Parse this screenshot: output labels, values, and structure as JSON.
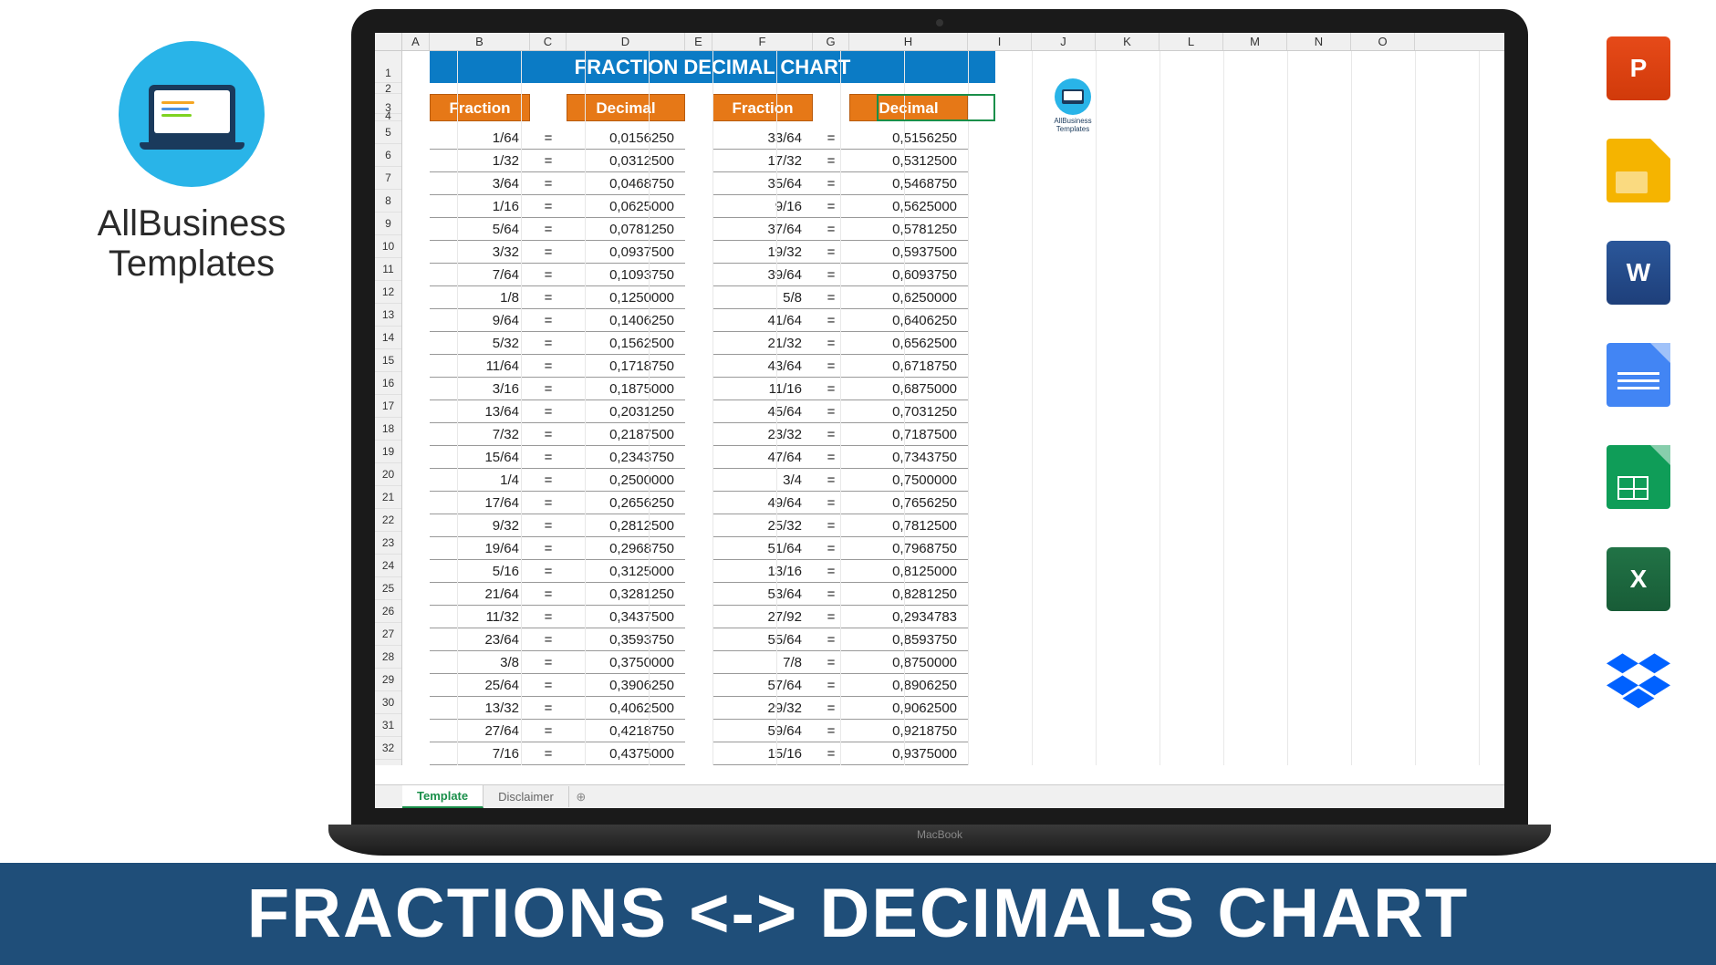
{
  "brand": {
    "line1": "AllBusiness",
    "line2": "Templates"
  },
  "banner": "FRACTIONS <-> DECIMALS CHART",
  "laptop_label": "MacBook",
  "spreadsheet": {
    "title": "FRACTION DECIMAL CHART",
    "title_bg": "#0b7bc5",
    "header_bg": "#e67817",
    "columns": [
      "A",
      "B",
      "C",
      "D",
      "E",
      "F",
      "G",
      "H",
      "I",
      "J",
      "K",
      "L",
      "M",
      "N",
      "O"
    ],
    "row_numbers": [
      1,
      2,
      3,
      4,
      5,
      6,
      7,
      8,
      9,
      10,
      11,
      12,
      13,
      14,
      15,
      16,
      17,
      18,
      19,
      20,
      21,
      22,
      23,
      24,
      25,
      26,
      27,
      28,
      29,
      30,
      31,
      32
    ],
    "headers": {
      "fraction": "Fraction",
      "decimal": "Decimal"
    },
    "tabs": {
      "active": "Template",
      "other": "Disclaimer"
    },
    "mini_logo": "AllBusiness Templates",
    "rows": [
      {
        "f1": "1/64",
        "d1": "0,0156250",
        "f2": "33/64",
        "d2": "0,5156250"
      },
      {
        "f1": "1/32",
        "d1": "0,0312500",
        "f2": "17/32",
        "d2": "0,5312500"
      },
      {
        "f1": "3/64",
        "d1": "0,0468750",
        "f2": "35/64",
        "d2": "0,5468750"
      },
      {
        "f1": "1/16",
        "d1": "0,0625000",
        "f2": "9/16",
        "d2": "0,5625000"
      },
      {
        "f1": "5/64",
        "d1": "0,0781250",
        "f2": "37/64",
        "d2": "0,5781250"
      },
      {
        "f1": "3/32",
        "d1": "0,0937500",
        "f2": "19/32",
        "d2": "0,5937500"
      },
      {
        "f1": "7/64",
        "d1": "0,1093750",
        "f2": "39/64",
        "d2": "0,6093750"
      },
      {
        "f1": "1/8",
        "d1": "0,1250000",
        "f2": "5/8",
        "d2": "0,6250000"
      },
      {
        "f1": "9/64",
        "d1": "0,1406250",
        "f2": "41/64",
        "d2": "0,6406250"
      },
      {
        "f1": "5/32",
        "d1": "0,1562500",
        "f2": "21/32",
        "d2": "0,6562500"
      },
      {
        "f1": "11/64",
        "d1": "0,1718750",
        "f2": "43/64",
        "d2": "0,6718750"
      },
      {
        "f1": "3/16",
        "d1": "0,1875000",
        "f2": "11/16",
        "d2": "0,6875000"
      },
      {
        "f1": "13/64",
        "d1": "0,2031250",
        "f2": "45/64",
        "d2": "0,7031250"
      },
      {
        "f1": "7/32",
        "d1": "0,2187500",
        "f2": "23/32",
        "d2": "0,7187500"
      },
      {
        "f1": "15/64",
        "d1": "0,2343750",
        "f2": "47/64",
        "d2": "0,7343750"
      },
      {
        "f1": "1/4",
        "d1": "0,2500000",
        "f2": "3/4",
        "d2": "0,7500000"
      },
      {
        "f1": "17/64",
        "d1": "0,2656250",
        "f2": "49/64",
        "d2": "0,7656250"
      },
      {
        "f1": "9/32",
        "d1": "0,2812500",
        "f2": "25/32",
        "d2": "0,7812500"
      },
      {
        "f1": "19/64",
        "d1": "0,2968750",
        "f2": "51/64",
        "d2": "0,7968750"
      },
      {
        "f1": "5/16",
        "d1": "0,3125000",
        "f2": "13/16",
        "d2": "0,8125000"
      },
      {
        "f1": "21/64",
        "d1": "0,3281250",
        "f2": "53/64",
        "d2": "0,8281250"
      },
      {
        "f1": "11/32",
        "d1": "0,3437500",
        "f2": "27/92",
        "d2": "0,2934783"
      },
      {
        "f1": "23/64",
        "d1": "0,3593750",
        "f2": "55/64",
        "d2": "0,8593750"
      },
      {
        "f1": "3/8",
        "d1": "0,3750000",
        "f2": "7/8",
        "d2": "0,8750000"
      },
      {
        "f1": "25/64",
        "d1": "0,3906250",
        "f2": "57/64",
        "d2": "0,8906250"
      },
      {
        "f1": "13/32",
        "d1": "0,4062500",
        "f2": "29/32",
        "d2": "0,9062500"
      },
      {
        "f1": "27/64",
        "d1": "0,4218750",
        "f2": "59/64",
        "d2": "0,9218750"
      },
      {
        "f1": "7/16",
        "d1": "0,4375000",
        "f2": "15/16",
        "d2": "0,9375000"
      }
    ]
  },
  "icons": {
    "powerpoint": "P",
    "word": "W",
    "excel": "X"
  }
}
